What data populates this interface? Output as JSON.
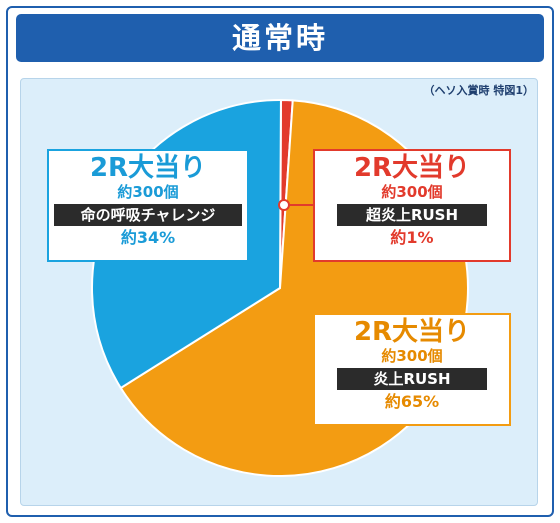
{
  "header": {
    "title": "通常時"
  },
  "note": "（ヘソ入賞時 特図1）",
  "colors": {
    "frame": "#1f5fae",
    "blue": "#1aa3df",
    "red": "#e23a2c",
    "orange": "#f39c12",
    "panel": "#dceefa"
  },
  "chart_data": {
    "type": "pie",
    "title": "通常時",
    "slices": [
      {
        "label": "2R大当り 約300個 超炎上RUSH",
        "value": 1,
        "color": "#e23a2c"
      },
      {
        "label": "2R大当り 約300個 炎上RUSH",
        "value": 65,
        "color": "#f39c12"
      },
      {
        "label": "2R大当り 約300個 命の呼吸チャレンジ",
        "value": 34,
        "color": "#1aa3df"
      }
    ]
  },
  "callouts": {
    "blue": {
      "title": "2R大当り",
      "sub": "約300個",
      "bar": "命の呼吸チャレンジ",
      "pct": "約34%"
    },
    "red": {
      "title": "2R大当り",
      "sub": "約300個",
      "bar": "超炎上RUSH",
      "pct": "約1%"
    },
    "orange": {
      "title": "2R大当り",
      "sub": "約300個",
      "bar": "炎上RUSH",
      "pct": "約65%"
    }
  }
}
